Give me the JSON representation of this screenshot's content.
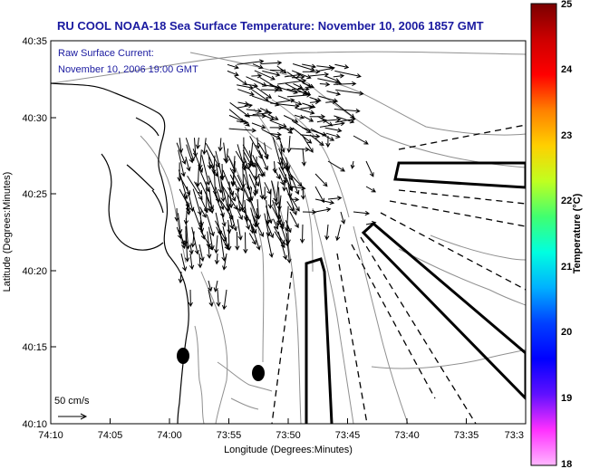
{
  "title": "RU COOL  NOAA-18  Sea Surface Temperature:  November 10, 2006 1857 GMT",
  "current_label_line1": "Raw Surface Current:",
  "current_label_line2": "November 10, 2006 19:00 GMT",
  "scale_arrow_label": "50 cm/s",
  "x_axis_label": "Longitude (Degrees:Minutes)",
  "y_axis_label": "Latitude (Degrees:Minutes)",
  "colorbar_label": "Temperature (°C)",
  "x_ticks": [
    "74:10",
    "74:05",
    "74:00",
    "73:55",
    "73:50",
    "73:45",
    "73:40",
    "73:35",
    "73:3"
  ],
  "y_ticks": [
    "40:35",
    "40:30",
    "40:25",
    "40:20",
    "40:15",
    "40:10"
  ],
  "colorbar_ticks": [
    "25",
    "24",
    "23",
    "22",
    "21",
    "20",
    "19",
    "18"
  ],
  "colors": {
    "title_text": "#1a1aa0",
    "land_outline": "#000000",
    "bathymetry": "#909090",
    "vectors": "#000000"
  },
  "colorbar_stops": [
    "#7a0000",
    "#cc0000",
    "#ff0000",
    "#ff8000",
    "#ffd000",
    "#c0ff20",
    "#40ff70",
    "#00ffe0",
    "#00b0ff",
    "#0040ff",
    "#0000ff",
    "#6010ff",
    "#ff30ff",
    "#ffb8ff"
  ]
}
